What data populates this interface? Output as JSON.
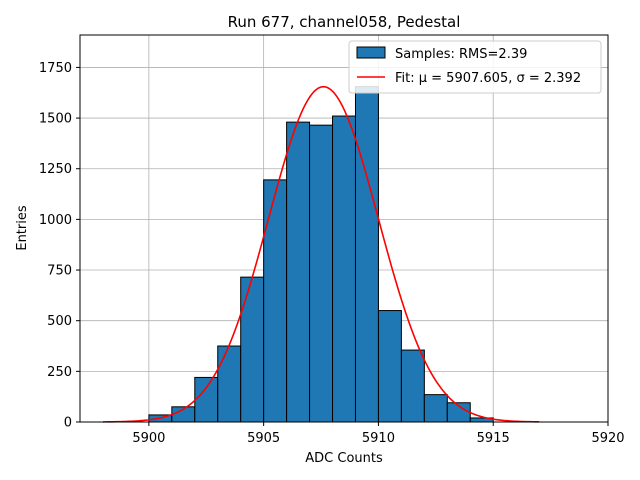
{
  "chart_data": {
    "type": "bar",
    "title": "Run 677, channel058, Pedestal",
    "xlabel": "ADC Counts",
    "ylabel": "Entries",
    "xlim": [
      5897,
      5920
    ],
    "ylim": [
      0,
      1910
    ],
    "xticks": [
      5900,
      5905,
      5910,
      5915,
      5920
    ],
    "yticks": [
      0,
      250,
      500,
      750,
      1000,
      1250,
      1500,
      1750
    ],
    "grid": true,
    "legend_position": "top-right",
    "bars": {
      "name": "Samples: RMS=2.39",
      "bin_width": 1,
      "bin_edges_left": [
        5900,
        5901,
        5902,
        5903,
        5904,
        5905,
        5906,
        5907,
        5908,
        5909,
        5910,
        5911,
        5912,
        5913,
        5914
      ],
      "values": [
        35,
        75,
        220,
        375,
        715,
        1195,
        1480,
        1465,
        1510,
        1655,
        550,
        355,
        135,
        95,
        20
      ],
      "color": "#1f77b4",
      "edgecolor": "#000000"
    },
    "fit": {
      "name": "Fit: μ = 5907.605, σ = 2.392",
      "mu": 5907.605,
      "sigma": 2.392,
      "amplitude": 1655,
      "x_range": [
        5898,
        5917
      ],
      "color": "#ff0000"
    }
  }
}
